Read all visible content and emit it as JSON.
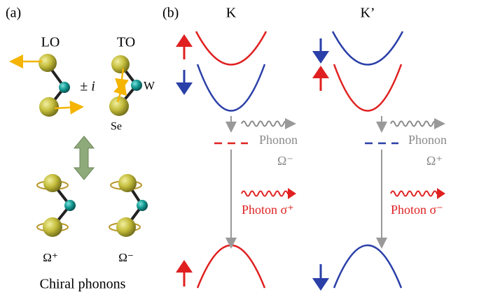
{
  "panel_a": {
    "label": "(a)",
    "lo": "LO",
    "to": "TO",
    "combine": "± i",
    "w": "W",
    "se": "Se",
    "omega_plus": "Ω⁺",
    "omega_minus": "Ω⁻",
    "caption": "Chiral phonons"
  },
  "panel_b": {
    "label": "(b)",
    "k": {
      "title": "K",
      "phonon": "Phonon",
      "phonon_mode": "Ω⁻",
      "photon": "Photon σ⁺"
    },
    "k_prime": {
      "title": "K’",
      "phonon": "Phonon",
      "phonon_mode": "Ω⁺",
      "photon": "Photon σ⁻"
    }
  }
}
